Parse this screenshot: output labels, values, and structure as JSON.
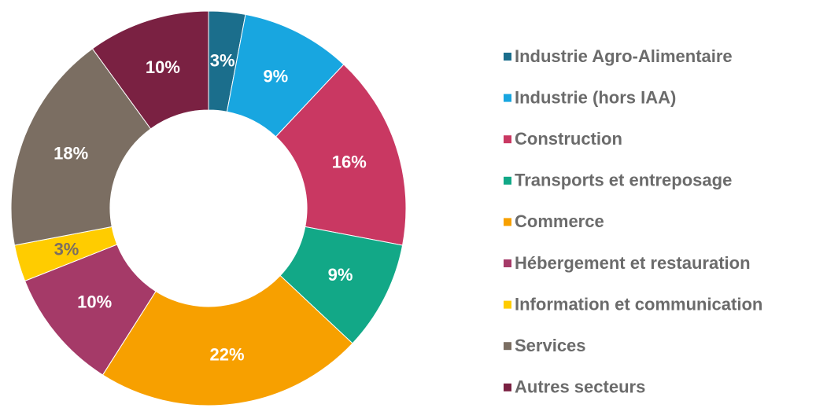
{
  "chart_data": {
    "type": "donut",
    "categories": [
      "Industrie Agro-Alimentaire",
      "Industrie (hors IAA)",
      "Construction",
      "Transports et entreposage",
      "Commerce",
      "Hébergement et restauration",
      "Information et communication",
      "Services",
      "Autres secteurs"
    ],
    "values": [
      3,
      9,
      16,
      9,
      22,
      10,
      3,
      18,
      10
    ],
    "value_labels": [
      "3%",
      "9%",
      "16%",
      "9%",
      "22%",
      "10%",
      "3%",
      "18%",
      "10%"
    ],
    "colors": [
      "#1b6e8c",
      "#18a6e0",
      "#c93862",
      "#12a887",
      "#f7a000",
      "#a53a68",
      "#ffcc00",
      "#7b6e62",
      "#7a2142"
    ],
    "legend": "right"
  }
}
